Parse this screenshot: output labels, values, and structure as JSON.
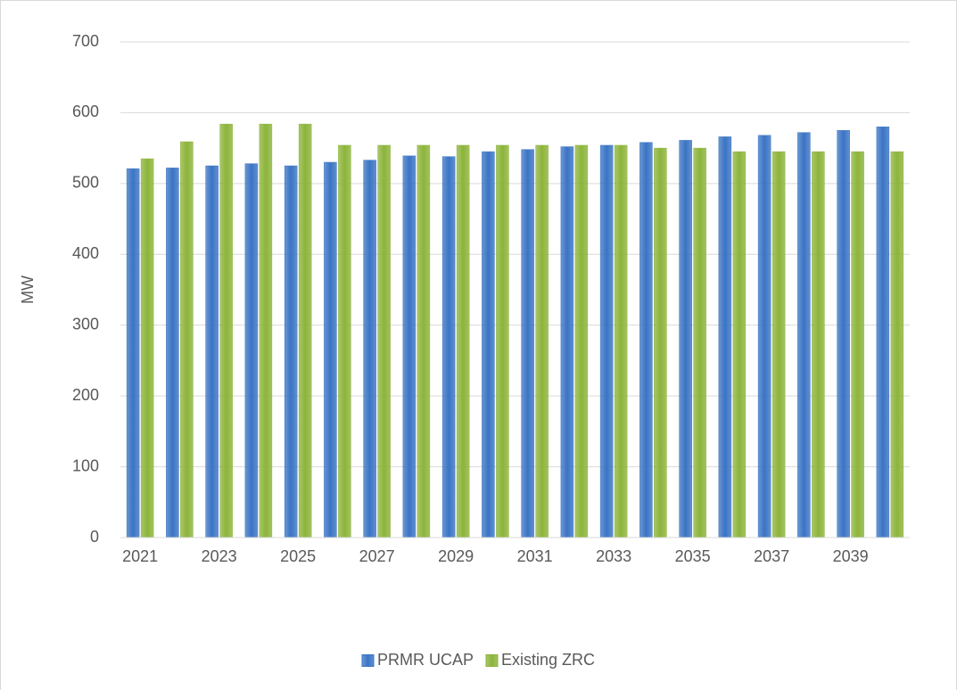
{
  "chart_data": {
    "type": "bar",
    "y_label": "MW",
    "categories": [
      "2021",
      null,
      "2023",
      null,
      "2025",
      null,
      "2027",
      null,
      "2029",
      null,
      "2031",
      null,
      "2033",
      null,
      "2035",
      null,
      "2037",
      null,
      "2039",
      null
    ],
    "series": [
      {
        "name": "PRMR UCAP",
        "color": "#3a74c4",
        "values": [
          521,
          522,
          525,
          528,
          525,
          530,
          533,
          539,
          538,
          545,
          548,
          552,
          554,
          558,
          561,
          566,
          568,
          572,
          575,
          580
        ]
      },
      {
        "name": "Existing ZRC",
        "color": "#8cb43a",
        "values": [
          535,
          559,
          584,
          584,
          584,
          554,
          554,
          554,
          554,
          554,
          554,
          554,
          554,
          550,
          550,
          545,
          545,
          545,
          545,
          545
        ]
      }
    ],
    "ylim": [
      0,
      700
    ],
    "yticks": [
      0,
      100,
      200,
      300,
      400,
      500,
      600,
      700
    ],
    "grid": true,
    "legend": "bottom"
  }
}
